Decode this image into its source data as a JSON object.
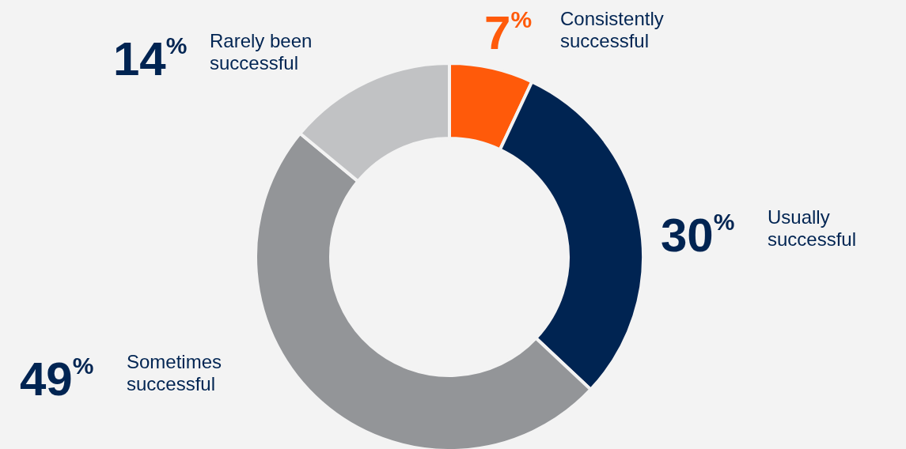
{
  "chart_data": {
    "type": "donut",
    "categories": [
      "Consistently successful",
      "Usually successful",
      "Sometimes successful",
      "Rarely been successful"
    ],
    "values": [
      7,
      30,
      49,
      14
    ],
    "colors": [
      "#ff5a0a",
      "#002452",
      "#939598",
      "#c1c2c4"
    ],
    "value_labels": [
      "7$^{%}$",
      "30$^{%}$",
      "49$^{%}$",
      "14$^{%}$"
    ]
  }
}
